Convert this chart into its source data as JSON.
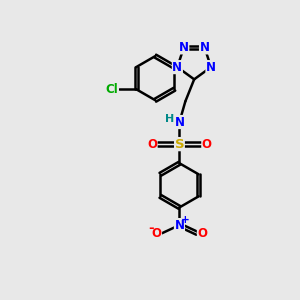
{
  "background_color": "#e8e8e8",
  "bond_color": "#000000",
  "bond_width": 1.8,
  "atom_colors": {
    "C": "#000000",
    "N": "#0000ff",
    "O": "#ff0000",
    "S": "#ccaa00",
    "Cl": "#00aa00",
    "H": "#008888"
  },
  "font_size": 8.5,
  "fig_size": [
    3.0,
    3.0
  ],
  "dpi": 100
}
